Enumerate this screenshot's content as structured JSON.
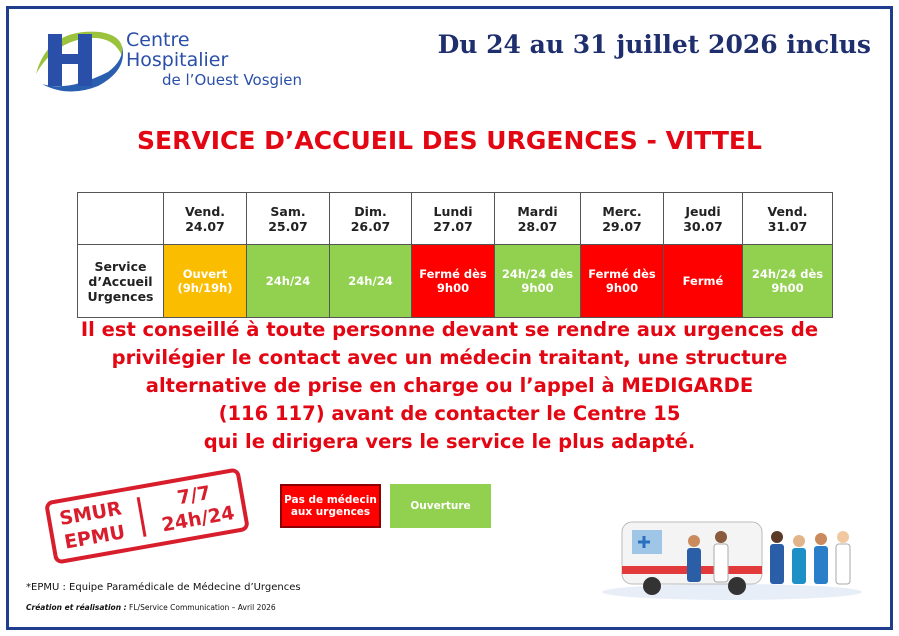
{
  "logo": {
    "line1": "Centre",
    "line2": "Hospitalier",
    "line3": "de l’Ouest Vosgien"
  },
  "header": {
    "date": "Du 24 au 31 juillet 2026 inclus"
  },
  "title": "SERVICE D’ACCUEIL DES URGENCES - VITTEL",
  "table": {
    "columns": [
      [
        "Vend.",
        "24.07"
      ],
      [
        "Sam.",
        "25.07"
      ],
      [
        "Dim.",
        "26.07"
      ],
      [
        "Lundi",
        "27.07"
      ],
      [
        "Mardi",
        "28.07"
      ],
      [
        "Merc.",
        "29.07"
      ],
      [
        "Jeudi",
        "30.07"
      ],
      [
        "Vend.",
        "31.07"
      ]
    ],
    "row_label": [
      "Service",
      "d’Accueil",
      "Urgences"
    ],
    "cells": [
      {
        "lines": [
          "Ouvert",
          "(9h/19h)"
        ],
        "color": "#fbbd00"
      },
      {
        "lines": [
          "24h/24"
        ],
        "color": "#92d050"
      },
      {
        "lines": [
          "24h/24"
        ],
        "color": "#92d050"
      },
      {
        "lines": [
          "Fermé dès",
          "9h00"
        ],
        "color": "#ff0000"
      },
      {
        "lines": [
          "24h/24 dès",
          "9h00"
        ],
        "color": "#92d050"
      },
      {
        "lines": [
          "Fermé dès",
          "9h00"
        ],
        "color": "#ff0000"
      },
      {
        "lines": [
          "Fermé"
        ],
        "color": "#ff0000"
      },
      {
        "lines": [
          "24h/24 dès",
          "9h00"
        ],
        "color": "#92d050"
      }
    ]
  },
  "message": [
    "Il est conseillé à toute personne devant se rendre aux urgences de",
    "privilégier le contact avec un médecin traitant, une structure",
    "alternative de prise en charge ou l’appel à MEDIGARDE",
    "(116 117) avant de contacter le Centre 15",
    "qui le dirigera vers le service le plus adapté."
  ],
  "stamp": {
    "left": [
      "SMUR",
      "EPMU"
    ],
    "right": [
      "7/7",
      "24h/24"
    ]
  },
  "legend": [
    {
      "lines": [
        "Pas de médecin",
        "aux urgences"
      ],
      "color": "#ff0000"
    },
    {
      "lines": [
        "Ouverture"
      ],
      "color": "#92d050"
    }
  ],
  "footnote": "*EPMU : Equipe Paramédicale de Médecine d’Urgences",
  "credit": {
    "label": "Création et réalisation :",
    "text": " FL/Service Communication – Avril 2026"
  }
}
